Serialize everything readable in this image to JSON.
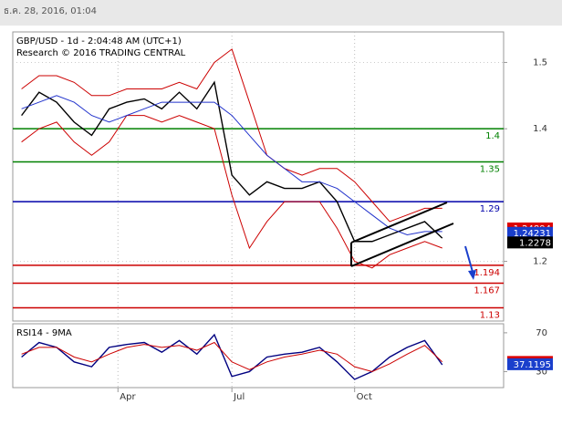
{
  "header": {
    "timestamp": "ธ.ค. 28, 2016, 01:04"
  },
  "chart_data": [
    {
      "type": "line",
      "title": "GBP/USD - 1d - 2:04:48 AM (UTC+1)",
      "subtitle": "Research © 2016 TRADING CENTRAL",
      "xlim": [
        0,
        28
      ],
      "xticks": [
        {
          "value": 6,
          "label": "Apr"
        },
        {
          "value": 12.5,
          "label": "Jul"
        },
        {
          "value": 19.5,
          "label": "Oct"
        }
      ],
      "ylim": [
        1.11,
        1.546
      ],
      "yticks": [
        1.5,
        1.4,
        1.2
      ],
      "grid": true,
      "series": [
        {
          "color": "#000000",
          "values": [
            1.42,
            1.455,
            1.44,
            1.41,
            1.39,
            1.43,
            1.44,
            1.445,
            1.43,
            1.455,
            1.43,
            1.47,
            1.33,
            1.3,
            1.32,
            1.31,
            1.31,
            1.32,
            1.29,
            1.23,
            1.23,
            1.24,
            1.25,
            1.26,
            1.235
          ]
        },
        {
          "color": "#cc0000",
          "values": [
            1.46,
            1.48,
            1.48,
            1.47,
            1.45,
            1.45,
            1.46,
            1.46,
            1.46,
            1.47,
            1.46,
            1.5,
            1.52,
            1.44,
            1.36,
            1.34,
            1.33,
            1.34,
            1.34,
            1.32,
            1.29,
            1.26,
            1.27,
            1.28,
            1.28
          ]
        },
        {
          "color": "#cc0000",
          "values": [
            1.38,
            1.4,
            1.41,
            1.38,
            1.36,
            1.38,
            1.42,
            1.42,
            1.41,
            1.42,
            1.41,
            1.4,
            1.3,
            1.22,
            1.26,
            1.29,
            1.29,
            1.29,
            1.25,
            1.2,
            1.19,
            1.21,
            1.22,
            1.23,
            1.22
          ]
        },
        {
          "color": "#2233cc",
          "values": [
            1.43,
            1.44,
            1.45,
            1.44,
            1.42,
            1.41,
            1.42,
            1.43,
            1.44,
            1.44,
            1.44,
            1.44,
            1.42,
            1.39,
            1.36,
            1.34,
            1.32,
            1.32,
            1.31,
            1.29,
            1.27,
            1.25,
            1.24,
            1.245,
            1.245
          ]
        }
      ],
      "levels": [
        {
          "value": 1.4,
          "color": "#008000"
        },
        {
          "value": 1.35,
          "color": "#008000"
        },
        {
          "value": 1.29,
          "color": "#0000aa"
        },
        {
          "value": 1.194,
          "color": "#cc0000"
        },
        {
          "value": 1.167,
          "color": "#cc0000"
        },
        {
          "value": 1.13,
          "color": "#cc0000"
        }
      ],
      "price_tags": [
        {
          "value": 1.24894,
          "color": "#dd0000"
        },
        {
          "value": 1.24231,
          "color": "#1a3fcc"
        },
        {
          "value": 1.2278,
          "color": "#000000"
        }
      ]
    },
    {
      "type": "line",
      "title": "RSI14 - 9MA",
      "xlim": [
        0,
        28
      ],
      "ylim": [
        13.5,
        79.3
      ],
      "yticks": [
        70,
        30
      ],
      "series": [
        {
          "color": "#000080",
          "values": [
            45,
            60,
            55,
            40,
            35,
            55,
            58,
            60,
            50,
            62,
            48,
            68,
            25,
            30,
            45,
            48,
            50,
            55,
            40,
            22,
            30,
            45,
            55,
            62,
            37
          ]
        },
        {
          "color": "#cc0000",
          "values": [
            48,
            55,
            55,
            45,
            40,
            48,
            55,
            58,
            55,
            57,
            52,
            60,
            40,
            32,
            40,
            45,
            48,
            52,
            48,
            35,
            30,
            38,
            48,
            57,
            40
          ]
        }
      ],
      "price_tags": [
        {
          "value": 39.4831,
          "color": "#dd0000"
        },
        {
          "value": 37.1195,
          "color": "#1a3fcc"
        }
      ]
    }
  ]
}
